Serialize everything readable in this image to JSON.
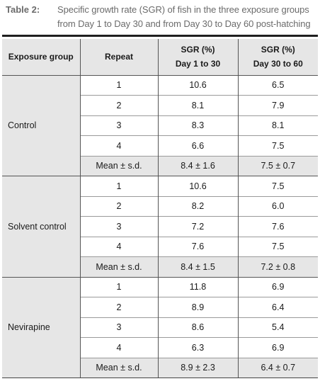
{
  "caption": {
    "label": "Table 2:",
    "line1": "Specific growth rate (SGR) of fish in the three exposure groups",
    "line2": "from Day 1 to Day 30 and from Day 30 to Day 60 post-hatching"
  },
  "headers": {
    "group": "Exposure group",
    "repeat": "Repeat",
    "sgr1_a": "SGR (%)",
    "sgr1_b": "Day 1 to 30",
    "sgr2_a": "SGR (%)",
    "sgr2_b": "Day 30 to 60"
  },
  "groups": [
    {
      "name": "Control",
      "rows": [
        {
          "repeat": "1",
          "d1": "10.6",
          "d2": "6.5"
        },
        {
          "repeat": "2",
          "d1": "8.1",
          "d2": "7.9"
        },
        {
          "repeat": "3",
          "d1": "8.3",
          "d2": "8.1"
        },
        {
          "repeat": "4",
          "d1": "6.6",
          "d2": "7.5"
        },
        {
          "repeat": "Mean ± s.d.",
          "d1": "8.4 ± 1.6",
          "d2": "7.5 ± 0.7"
        }
      ]
    },
    {
      "name": "Solvent control",
      "rows": [
        {
          "repeat": "1",
          "d1": "10.6",
          "d2": "7.5"
        },
        {
          "repeat": "2",
          "d1": "8.2",
          "d2": "6.0"
        },
        {
          "repeat": "3",
          "d1": "7.2",
          "d2": "7.6"
        },
        {
          "repeat": "4",
          "d1": "7.6",
          "d2": "7.5"
        },
        {
          "repeat": "Mean ± s.d.",
          "d1": "8.4 ± 1.5",
          "d2": "7.2 ± 0.8"
        }
      ]
    },
    {
      "name": "Nevirapine",
      "rows": [
        {
          "repeat": "1",
          "d1": "11.8",
          "d2": "6.9"
        },
        {
          "repeat": "2",
          "d1": "8.9",
          "d2": "6.4"
        },
        {
          "repeat": "3",
          "d1": "8.6",
          "d2": "5.4"
        },
        {
          "repeat": "4",
          "d1": "6.3",
          "d2": "6.9"
        },
        {
          "repeat": "Mean ± s.d.",
          "d1": "8.9 ± 2.3",
          "d2": "6.4 ± 0.7"
        }
      ]
    }
  ],
  "colors": {
    "caption_text": "#6b6b6b",
    "shade": "#e6e6e6",
    "rule": "#1f1f1f"
  }
}
